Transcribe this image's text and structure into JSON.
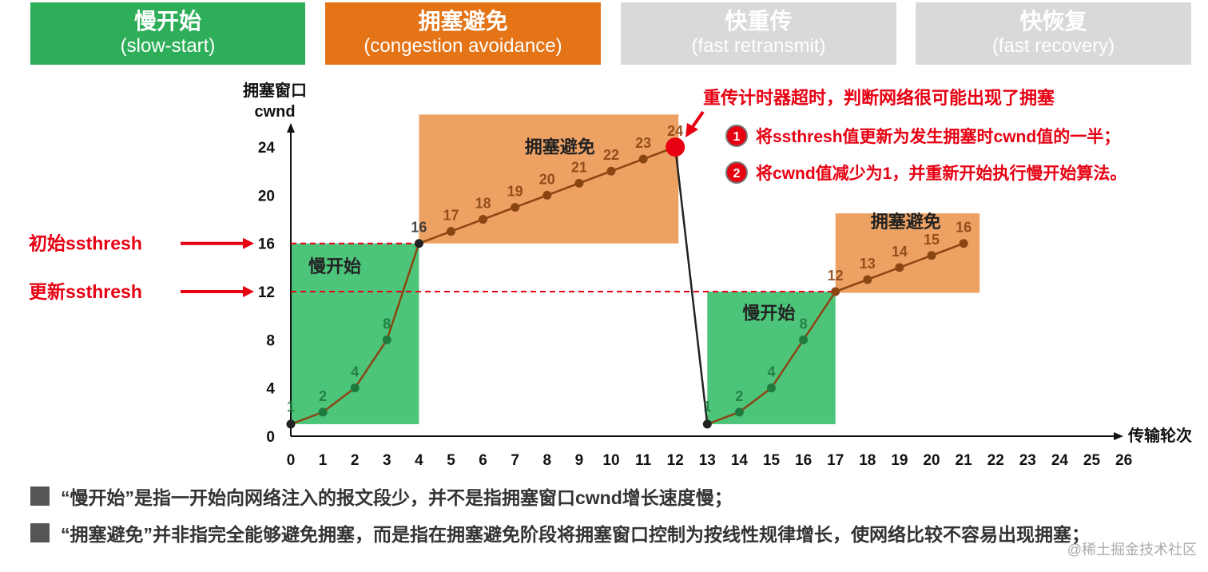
{
  "tabs": [
    {
      "title": "慢开始",
      "subtitle": "(slow-start)",
      "color": "#2fae5a"
    },
    {
      "title": "拥塞避免",
      "subtitle": "(congestion avoidance)",
      "color": "#e57417"
    },
    {
      "title": "快重传",
      "subtitle": "(fast retransmit)",
      "color": "#d9d9d9"
    },
    {
      "title": "快恢复",
      "subtitle": "(fast recovery)",
      "color": "#d9d9d9"
    }
  ],
  "chart_data": {
    "type": "line",
    "ylabel": "拥塞窗口\ncwnd",
    "xlabel": "传输轮次",
    "x_ticks": [
      0,
      1,
      2,
      3,
      4,
      5,
      6,
      7,
      8,
      9,
      10,
      11,
      12,
      13,
      14,
      15,
      16,
      17,
      18,
      19,
      20,
      21,
      22,
      23,
      24,
      25,
      26
    ],
    "y_ticks": [
      0,
      4,
      8,
      12,
      16,
      20,
      24
    ],
    "xlim": [
      0,
      26
    ],
    "ylim": [
      0,
      24
    ],
    "series": [
      {
        "points": [
          [
            0,
            1
          ],
          [
            1,
            2
          ],
          [
            2,
            4
          ],
          [
            3,
            8
          ],
          [
            4,
            16
          ],
          [
            5,
            17
          ],
          [
            6,
            18
          ],
          [
            7,
            19
          ],
          [
            8,
            20
          ],
          [
            9,
            21
          ],
          [
            10,
            22
          ],
          [
            11,
            23
          ],
          [
            12,
            24
          ],
          [
            13,
            1
          ],
          [
            14,
            2
          ],
          [
            15,
            4
          ],
          [
            16,
            8
          ],
          [
            17,
            12
          ],
          [
            18,
            13
          ],
          [
            19,
            14
          ],
          [
            20,
            15
          ],
          [
            21,
            16
          ]
        ]
      }
    ],
    "point_labels": [
      {
        "x": 0,
        "y": 1,
        "text": "1",
        "kind": "ss"
      },
      {
        "x": 1,
        "y": 2,
        "text": "2",
        "kind": "ss"
      },
      {
        "x": 2,
        "y": 4,
        "text": "4",
        "kind": "ss"
      },
      {
        "x": 3,
        "y": 8,
        "text": "8",
        "kind": "ss"
      },
      {
        "x": 4,
        "y": 16,
        "text": "16",
        "kind": "dark"
      },
      {
        "x": 5,
        "y": 17,
        "text": "17",
        "kind": "ca"
      },
      {
        "x": 6,
        "y": 18,
        "text": "18",
        "kind": "ca"
      },
      {
        "x": 7,
        "y": 19,
        "text": "19",
        "kind": "ca"
      },
      {
        "x": 8,
        "y": 20,
        "text": "20",
        "kind": "ca"
      },
      {
        "x": 9,
        "y": 21,
        "text": "21",
        "kind": "ca"
      },
      {
        "x": 10,
        "y": 22,
        "text": "22",
        "kind": "ca"
      },
      {
        "x": 11,
        "y": 23,
        "text": "23",
        "kind": "ca"
      },
      {
        "x": 12,
        "y": 24,
        "text": "24",
        "kind": "ca"
      },
      {
        "x": 13,
        "y": 1,
        "text": "1",
        "kind": "ss"
      },
      {
        "x": 14,
        "y": 2,
        "text": "2",
        "kind": "ss"
      },
      {
        "x": 15,
        "y": 4,
        "text": "4",
        "kind": "ss"
      },
      {
        "x": 16,
        "y": 8,
        "text": "8",
        "kind": "ss"
      },
      {
        "x": 17,
        "y": 12,
        "text": "12",
        "kind": "ca"
      },
      {
        "x": 18,
        "y": 13,
        "text": "13",
        "kind": "ca"
      },
      {
        "x": 19,
        "y": 14,
        "text": "14",
        "kind": "ca"
      },
      {
        "x": 20,
        "y": 15,
        "text": "15",
        "kind": "ca"
      },
      {
        "x": 21,
        "y": 16,
        "text": "16",
        "kind": "ca"
      }
    ],
    "regions": [
      {
        "label": "慢开始",
        "x0": 0,
        "x1": 4,
        "y0": 1,
        "y1": 16,
        "color": "#4cc47a"
      },
      {
        "label": "拥塞避免",
        "x0": 4,
        "x1": 12.1,
        "y0": 16,
        "y1": 26.7,
        "color": "#eda264"
      },
      {
        "label": "慢开始",
        "x0": 13,
        "x1": 17,
        "y0": 1,
        "y1": 12,
        "color": "#4cc47a"
      },
      {
        "label": "拥塞避免",
        "x0": 17,
        "x1": 21.5,
        "y0": 11.9,
        "y1": 18.5,
        "color": "#eda264"
      }
    ],
    "thresholds": [
      {
        "label": "初始ssthresh",
        "value": 16
      },
      {
        "label": "更新ssthresh",
        "value": 12
      }
    ],
    "timeout": {
      "x": 12,
      "y": 24,
      "title": "重传计时器超时，判断网络很可能出现了拥塞",
      "items": [
        {
          "num": "1",
          "text": "将ssthresh值更新为发生拥塞时cwnd值的一半；"
        },
        {
          "num": "2",
          "text": "将cwnd值减少为1，并重新开始执行慢开始算法。"
        }
      ]
    },
    "colors": {
      "line": "#8b4513",
      "dot_ss": "#1f7a3e",
      "dot_ca": "#8b4513",
      "red": "#e60012",
      "ss_label": "#1f7a3e",
      "ca_label": "#8b4513"
    }
  },
  "notes": [
    "“慢开始”是指一开始向网络注入的报文段少，并不是指拥塞窗口cwnd增长速度慢；",
    "“拥塞避免”并非指完全能够避免拥塞，而是指在拥塞避免阶段将拥塞窗口控制为按线性规律增长，使网络比较不容易出现拥塞；"
  ],
  "watermark": "@稀土掘金技术社区"
}
